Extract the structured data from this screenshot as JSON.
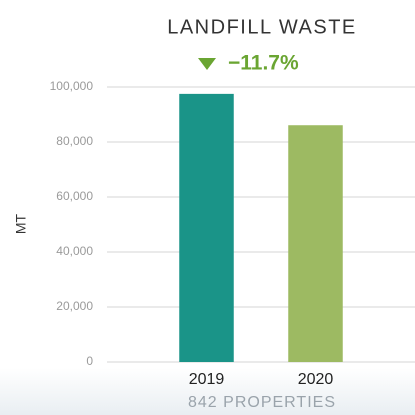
{
  "chart_data": {
    "type": "bar",
    "title": "LANDFILL WASTE",
    "annotation": "−11.7%",
    "ylabel": "MT",
    "footer": "842 PROPERTIES",
    "categories": [
      "2019",
      "2020"
    ],
    "values": [
      97500,
      86100
    ],
    "colors": [
      "#1a9488",
      "#9dba62"
    ],
    "ylim": [
      0,
      100000
    ],
    "yticks": [
      0,
      {
        "value": 20000,
        "label": "20,000"
      },
      {
        "value": 40000,
        "label": "40,000"
      },
      {
        "value": 60000,
        "label": "60,000"
      },
      {
        "value": 80000,
        "label": "80,000"
      },
      {
        "value": 100000,
        "label": "100,000"
      }
    ],
    "grid": true
  }
}
